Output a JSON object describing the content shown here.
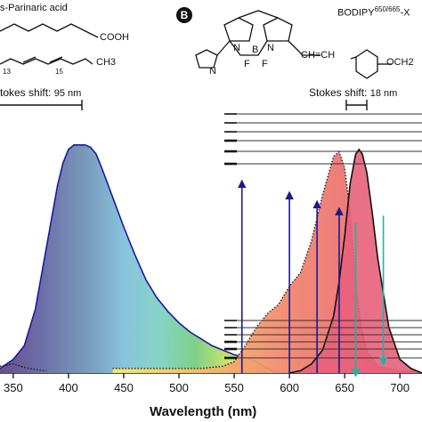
{
  "panel_a": {
    "compound_label": "s-Parinaric acid",
    "group_label": "COOH",
    "methyl_label": "CH3",
    "locant_13": "13",
    "locant_15": "15",
    "stokes_label": "tokes shift:",
    "stokes_value": "95 nm"
  },
  "panel_b": {
    "badge": "B",
    "compound_label_main": "BODIPY",
    "compound_label_sup": "650/665",
    "compound_label_suffix": "-X",
    "atom_B": "B",
    "atom_N1": "N",
    "atom_N2": "N",
    "atom_N3": "N",
    "atom_F1": "F",
    "atom_F2": "F",
    "vinyl_label": "CH=CH",
    "ether_label": "OCH2",
    "stokes_label": "Stokes shift:",
    "stokes_value": "18 nm"
  },
  "chart_data": {
    "type": "line",
    "title": "",
    "xlabel": "Wavelength (nm)",
    "ylabel": "",
    "xlim": [
      338,
      720
    ],
    "ylim": [
      0,
      1.05
    ],
    "xticks": [
      350,
      400,
      450,
      500,
      550,
      600,
      650,
      700
    ],
    "grid": false,
    "series": [
      {
        "name": "",
        "style": "solid-blue-filled-spectrum",
        "x": [
          338,
          350,
          360,
          370,
          380,
          390,
          395,
          400,
          405,
          410,
          415,
          420,
          425,
          430,
          440,
          450,
          460,
          470,
          480,
          490,
          500,
          510,
          520,
          530,
          540,
          550,
          560,
          570,
          580,
          590
        ],
        "y": [
          0.02,
          0.06,
          0.12,
          0.28,
          0.55,
          0.82,
          0.92,
          0.98,
          1.0,
          1.0,
          1.0,
          0.99,
          0.96,
          0.9,
          0.77,
          0.64,
          0.52,
          0.41,
          0.33,
          0.27,
          0.22,
          0.18,
          0.15,
          0.12,
          0.1,
          0.08,
          0.07,
          0.05,
          0.02,
          0.0
        ]
      },
      {
        "name": "",
        "style": "dotted-black",
        "x": [
          338,
          350,
          360,
          370,
          380
        ],
        "y": [
          0.03,
          0.04,
          0.025,
          0.015,
          0.01
        ]
      },
      {
        "name": "",
        "style": "dotted-black",
        "x": [
          440,
          460,
          480,
          500,
          520,
          540,
          550,
          560,
          570,
          580,
          590,
          600,
          610,
          620,
          630,
          640,
          645,
          650,
          655,
          660,
          665,
          670,
          680,
          690,
          700,
          710,
          720
        ],
        "y": [
          0.02,
          0.02,
          0.02,
          0.02,
          0.02,
          0.03,
          0.05,
          0.12,
          0.2,
          0.26,
          0.3,
          0.38,
          0.44,
          0.58,
          0.78,
          0.95,
          0.97,
          0.9,
          0.7,
          0.4,
          0.2,
          0.1,
          0.03,
          0.02,
          0.01,
          0.01,
          0.0
        ]
      },
      {
        "name": "",
        "style": "solid-black",
        "x": [
          600,
          610,
          620,
          630,
          640,
          645,
          650,
          655,
          660,
          663,
          666,
          670,
          675,
          680,
          690,
          700,
          710,
          720
        ],
        "y": [
          0.0,
          0.01,
          0.04,
          0.1,
          0.25,
          0.4,
          0.6,
          0.83,
          0.96,
          0.98,
          0.96,
          0.88,
          0.7,
          0.5,
          0.2,
          0.06,
          0.02,
          0.0
        ]
      }
    ],
    "arrows": [
      {
        "x": 557,
        "y_from": 0.0,
        "y_to": 0.83,
        "direction": "up",
        "color": "#1a1a8c"
      },
      {
        "x": 600,
        "y_from": 0.0,
        "y_to": 0.78,
        "direction": "up",
        "color": "#1a1a8c"
      },
      {
        "x": 625,
        "y_from": 0.0,
        "y_to": 0.74,
        "direction": "up",
        "color": "#1a1a8c"
      },
      {
        "x": 645,
        "y_from": 0.0,
        "y_to": 0.71,
        "direction": "up",
        "color": "#1a1a8c"
      },
      {
        "x": 660,
        "y_from": 0.66,
        "y_to": 0.0,
        "direction": "down",
        "color": "#21b3a3"
      },
      {
        "x": 685,
        "y_from": 0.69,
        "y_to": 0.05,
        "direction": "down",
        "color": "#21b3a3"
      }
    ],
    "colors": {
      "spectrum_line": "#1a1aa6",
      "red_fill": "#e8607a",
      "absorb_arrow": "#1a1a8c",
      "emit_arrow": "#21b3a3"
    }
  }
}
